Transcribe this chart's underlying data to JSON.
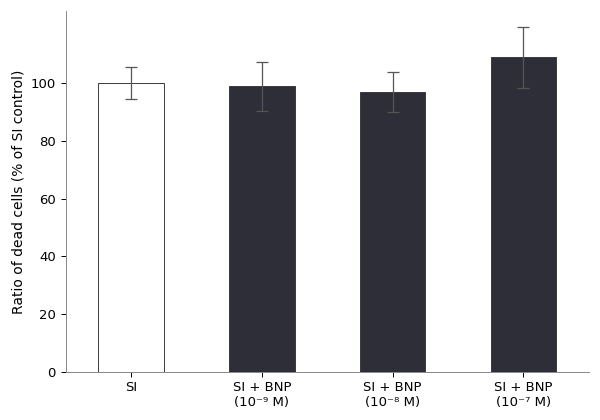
{
  "categories": [
    "SI",
    "SI + BNP\n$(10^{-9}$ M)",
    "SI + BNP\n$(10^{-8}$ M)",
    "SI + BNP\n$(10^{-7}$ M)"
  ],
  "cat_labels": [
    "SI",
    "SI + BNP\n(10⁻⁹ M)",
    "SI + BNP\n(10⁻⁸ M)",
    "SI + BNP\n(10⁻⁷ M)"
  ],
  "values": [
    100.0,
    99.0,
    97.0,
    109.0
  ],
  "errors": [
    5.5,
    8.5,
    7.0,
    10.5
  ],
  "bar_colors": [
    "#ffffff",
    "#2e2e38",
    "#2e2e38",
    "#2e2e38"
  ],
  "bar_edgecolor": "#3a3a3a",
  "ylabel": "Ratio of dead cells (% of SI control)",
  "ylim": [
    0,
    125
  ],
  "yticks": [
    0,
    20,
    40,
    60,
    80,
    100
  ],
  "bar_width": 0.5,
  "x_positions": [
    0,
    1,
    2,
    3
  ],
  "background_color": "#ffffff",
  "error_capsize": 4,
  "error_linewidth": 0.9,
  "error_color": "#555555",
  "spine_color": "#888888",
  "tick_label_fontsize": 9.5,
  "ylabel_fontsize": 10
}
